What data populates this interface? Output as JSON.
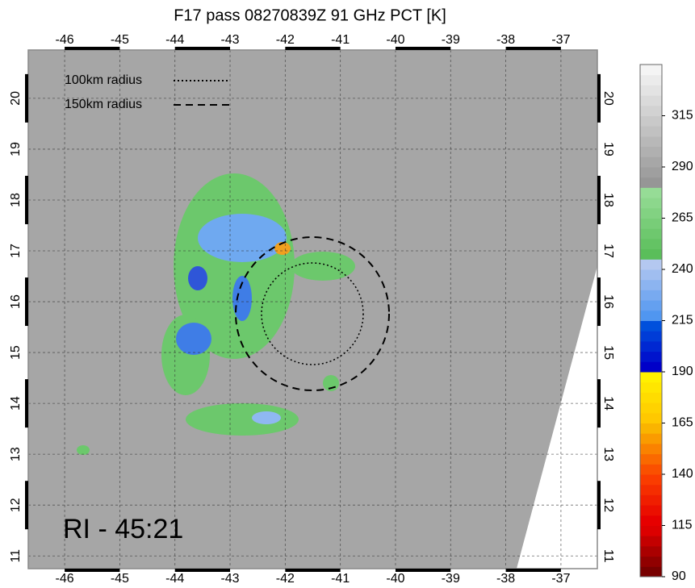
{
  "title": "F17 pass 08270839Z 91 GHz PCT [K]",
  "map": {
    "xlim": [
      -46.66,
      -36.34
    ],
    "ylim": [
      10.75,
      20.95
    ],
    "xticks": [
      -46,
      -45,
      -44,
      -43,
      -42,
      -41,
      -40,
      -39,
      -38,
      -37
    ],
    "yticks": [
      11,
      12,
      13,
      14,
      15,
      16,
      17,
      18,
      19,
      20
    ]
  },
  "legend": [
    {
      "label": "100km radius"
    },
    {
      "label": "150km radius"
    }
  ],
  "annotation": "RI - 45:21",
  "colorbar": {
    "lim": [
      90,
      340
    ],
    "ticks": [
      90,
      115,
      140,
      165,
      190,
      215,
      240,
      265,
      290,
      315
    ]
  }
}
